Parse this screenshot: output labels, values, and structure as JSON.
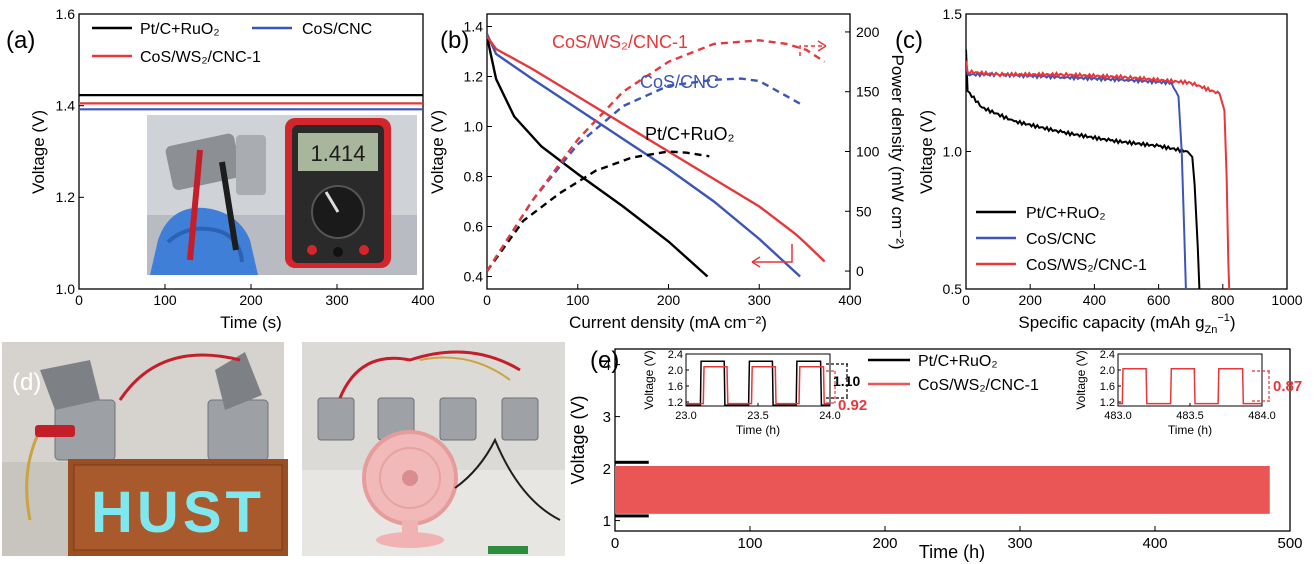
{
  "figure": {
    "panels": {
      "a": "(a)",
      "b": "(b)",
      "c": "(c)",
      "d": "(d)",
      "e": "(e)"
    },
    "sub_labels": {
      "2": "2",
      "zn": "Zn",
      "minus1": "−1",
      "minus2": "−2"
    },
    "inline_values": {
      "e_inset1_gap1": "1.10",
      "e_inset1_gap2": "0.92",
      "e_inset2_gap": "0.87"
    },
    "photos": {
      "a_multimeter_reading": "1.414",
      "d_led_board_text": "HUST"
    },
    "colors": {
      "pt": "#000000",
      "cos": "#3d55b8",
      "ws": "#e8373a",
      "ws_fill": "#ea5556"
    }
  },
  "chart_data": [
    {
      "panel": "a",
      "type": "line",
      "xlabel": "Time (s)",
      "ylabel": "Voltage (V)",
      "xlim": [
        0,
        400
      ],
      "ylim": [
        1.0,
        1.6
      ],
      "xticks": [
        0,
        100,
        200,
        300,
        400
      ],
      "yticks": [
        1.0,
        1.2,
        1.4,
        1.6
      ],
      "legend": "top",
      "series": [
        {
          "name": "Pt/C+RuO₂",
          "color": "#000000",
          "x": [
            0,
            400
          ],
          "y": [
            1.423,
            1.423
          ]
        },
        {
          "name": "CoS/CNC",
          "color": "#3d55b8",
          "x": [
            0,
            400
          ],
          "y": [
            1.392,
            1.392
          ]
        },
        {
          "name": "CoS/WS₂/CNC-1",
          "color": "#e8373a",
          "x": [
            0,
            400
          ],
          "y": [
            1.405,
            1.405
          ]
        }
      ]
    },
    {
      "panel": "b",
      "type": "line",
      "xlabel": "Current density  (mA cm⁻²)",
      "ylabel": "Voltage (V)",
      "y2label": "Power density (mW cm⁻²)",
      "xlim": [
        0,
        400
      ],
      "ylim": [
        0.35,
        1.45
      ],
      "y2lim": [
        -15,
        215
      ],
      "xticks": [
        0,
        100,
        200,
        300,
        400
      ],
      "yticks": [
        0.4,
        0.6,
        0.8,
        1.0,
        1.2,
        1.4
      ],
      "y2ticks": [
        0,
        50,
        100,
        150,
        200
      ],
      "series": [
        {
          "name": "Pt/C+RuO₂",
          "color": "#000000",
          "axis": "left",
          "x": [
            0,
            10,
            30,
            60,
            100,
            150,
            200,
            243
          ],
          "y": [
            1.36,
            1.19,
            1.04,
            0.92,
            0.81,
            0.68,
            0.54,
            0.4
          ]
        },
        {
          "name": "CoS/CNC",
          "color": "#3d55b8",
          "axis": "left",
          "x": [
            0,
            10,
            50,
            100,
            150,
            200,
            250,
            300,
            345
          ],
          "y": [
            1.37,
            1.29,
            1.19,
            1.07,
            0.95,
            0.83,
            0.7,
            0.55,
            0.4
          ]
        },
        {
          "name": "CoS/WS₂/CNC-1",
          "color": "#e8373a",
          "axis": "left",
          "x": [
            0,
            10,
            50,
            100,
            150,
            200,
            250,
            300,
            340,
            352,
            372
          ],
          "y": [
            1.36,
            1.31,
            1.23,
            1.12,
            1.01,
            0.9,
            0.79,
            0.68,
            0.57,
            0.53,
            0.46
          ]
        },
        {
          "name": "Pt/C+RuO₂",
          "color": "#000000",
          "axis": "right",
          "dashed": true,
          "x": [
            0,
            40,
            80,
            120,
            160,
            200,
            220,
            245
          ],
          "y": [
            0,
            42,
            65,
            84,
            95,
            100,
            99,
            96
          ]
        },
        {
          "name": "CoS/CNC",
          "color": "#3d55b8",
          "axis": "right",
          "dashed": true,
          "x": [
            0,
            50,
            100,
            150,
            200,
            250,
            280,
            300,
            345
          ],
          "y": [
            0,
            59,
            106,
            138,
            155,
            160,
            161,
            159,
            140
          ]
        },
        {
          "name": "CoS/WS₂/CNC-1",
          "color": "#e8373a",
          "axis": "right",
          "dashed": true,
          "x": [
            0,
            50,
            100,
            150,
            200,
            250,
            300,
            330,
            352,
            372
          ],
          "y": [
            0,
            59,
            110,
            150,
            175,
            190,
            193,
            190,
            185,
            175
          ]
        }
      ],
      "annotations": [
        "CoS/WS₂/CNC-1",
        "CoS/CNC",
        "Pt/C+RuO₂"
      ]
    },
    {
      "panel": "c",
      "type": "line",
      "xlabel": "Specific capacity (mAh g_Zn⁻¹)",
      "ylabel": "Voltage (V)",
      "xlim": [
        0,
        1000
      ],
      "ylim": [
        0.5,
        1.5
      ],
      "xticks": [
        0,
        200,
        400,
        600,
        800,
        1000
      ],
      "yticks": [
        0.5,
        1.0,
        1.5
      ],
      "legend": "bottom-left",
      "series": [
        {
          "name": "Pt/C+RuO₂",
          "color": "#000000",
          "x": [
            0,
            5,
            50,
            150,
            300,
            450,
            600,
            690,
            705,
            712,
            722,
            727
          ],
          "y": [
            1.37,
            1.22,
            1.16,
            1.11,
            1.07,
            1.04,
            1.02,
            1.0,
            0.98,
            0.88,
            0.65,
            0.5
          ]
        },
        {
          "name": "CoS/CNC",
          "color": "#3d55b8",
          "x": [
            0,
            5,
            100,
            300,
            500,
            640,
            662,
            672,
            680,
            685
          ],
          "y": [
            1.32,
            1.28,
            1.28,
            1.27,
            1.26,
            1.25,
            1.2,
            1.0,
            0.7,
            0.5
          ]
        },
        {
          "name": "CoS/WS₂/CNC-1",
          "color": "#e8373a",
          "x": [
            0,
            5,
            100,
            300,
            500,
            700,
            790,
            805,
            812,
            817,
            820
          ],
          "y": [
            1.33,
            1.29,
            1.28,
            1.28,
            1.27,
            1.25,
            1.21,
            1.15,
            0.9,
            0.6,
            0.5
          ]
        }
      ]
    },
    {
      "panel": "e",
      "type": "area",
      "xlabel": "Time (h)",
      "ylabel": "Voltage (V)",
      "xlim": [
        0,
        500
      ],
      "ylim": [
        0.8,
        4.3
      ],
      "xticks": [
        0,
        100,
        200,
        300,
        400,
        500
      ],
      "yticks": [
        1,
        2,
        3,
        4
      ],
      "legend": "top-center",
      "series": [
        {
          "name": "Pt/C+RuO₂",
          "color": "#000000",
          "x": [
            0,
            25
          ],
          "ymin": [
            1.1,
            1.1
          ],
          "ymax": [
            2.15,
            2.15
          ]
        },
        {
          "name": "CoS/WS₂/CNC-1",
          "color": "#ea5556",
          "x": [
            0,
            485
          ],
          "ymin": [
            1.13,
            1.13
          ],
          "ymax": [
            2.05,
            2.05
          ]
        }
      ],
      "insets": [
        {
          "xlabel": "Time (h)",
          "ylabel": "Voltage (V)",
          "xlim": [
            23.0,
            24.0
          ],
          "ylim": [
            1.1,
            2.4
          ],
          "xticks": [
            "23.0",
            "23.5",
            "24.0"
          ],
          "yticks": [
            "1.2",
            "1.6",
            "2.0",
            "2.4"
          ],
          "annotations": [
            "1.10",
            "0.92"
          ]
        },
        {
          "xlabel": "Time (h)",
          "ylabel": "Voltage (V)",
          "xlim": [
            483.0,
            484.0
          ],
          "ylim": [
            1.1,
            2.4
          ],
          "xticks": [
            "483.0",
            "483.5",
            "484.0"
          ],
          "yticks": [
            "1.2",
            "1.6",
            "2.0",
            "2.4"
          ],
          "annotations": [
            "0.87"
          ]
        }
      ]
    }
  ]
}
